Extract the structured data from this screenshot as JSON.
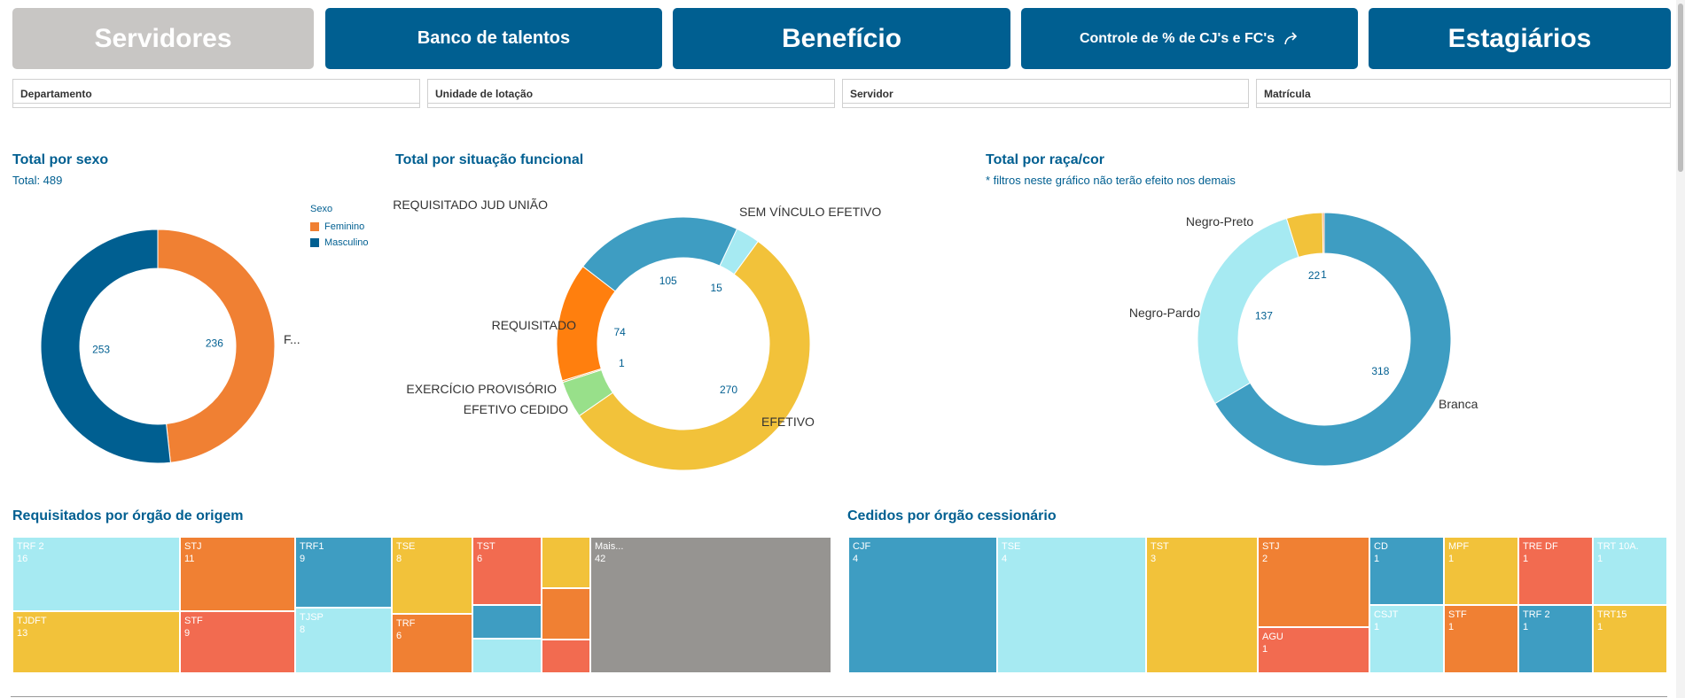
{
  "nav": [
    {
      "label": "Servidores",
      "state": "inactive"
    },
    {
      "label": "Banco de talentos",
      "state": "active"
    },
    {
      "label": "Benefício",
      "state": "active"
    },
    {
      "label": "Controle de % de CJ's e FC's",
      "state": "active",
      "icon": "share-arrow-icon"
    },
    {
      "label": "Estagiários",
      "state": "active"
    }
  ],
  "filters": [
    "Departamento",
    "Unidade de lotação",
    "Servidor",
    "Matrícula"
  ],
  "panels": {
    "sexo": {
      "title": "Total por sexo",
      "subtitle": "Total: 489",
      "legend_title": "Sexo",
      "truncated_label": "F..."
    },
    "situacao": {
      "title": "Total por situação funcional"
    },
    "raca": {
      "title": "Total por raça/cor",
      "subtitle": "* filtros neste gráfico não terão efeito nos demais"
    },
    "requisitados": {
      "title": "Requisitados por órgão de origem"
    },
    "cedidos": {
      "title": "Cedidos por órgão cessionário"
    }
  },
  "chart_data": [
    {
      "type": "pie",
      "donut": true,
      "title": "Total por sexo",
      "legend_placement": "top-right",
      "slices": [
        {
          "label": "Feminino",
          "value": 236,
          "color": "#f08033"
        },
        {
          "label": "Masculino",
          "value": 253,
          "color": "#005f91"
        }
      ]
    },
    {
      "type": "pie",
      "donut": true,
      "title": "Total por situação funcional",
      "slices": [
        {
          "label": "EFETIVO",
          "value": 270,
          "color": "#f2c23a"
        },
        {
          "label": "EFETIVO CEDIDO",
          "value": 23,
          "color": "#98e08a",
          "value_shown": false
        },
        {
          "label": "EXERCÍCIO PROVISÓRIO",
          "value": 1,
          "color": "#f4a03a"
        },
        {
          "label": "REQUISITADO",
          "value": 74,
          "color": "#ff7f0e"
        },
        {
          "label": "REQUISITADO JUD UNIÃO",
          "value": 105,
          "color": "#3e9dc2"
        },
        {
          "label": "SEM VÍNCULO EFETIVO",
          "value": 15,
          "color": "#a6eaf2"
        }
      ]
    },
    {
      "type": "pie",
      "donut": true,
      "title": "Total por raça/cor",
      "slices": [
        {
          "label": "Branca",
          "value": 318,
          "color": "#3e9dc2"
        },
        {
          "label": "Negro-Pardo",
          "value": 137,
          "color": "#a6eaf2"
        },
        {
          "label": "Negro-Preto",
          "value": 22,
          "color": "#f2c23a"
        },
        {
          "label": "",
          "value": 1,
          "color": "#f08033"
        }
      ]
    },
    {
      "type": "treemap",
      "title": "Requisitados por órgão de origem",
      "cells": [
        {
          "label": "TRF 2",
          "value": 16,
          "color": "#a6eaf2"
        },
        {
          "label": "TJDFT",
          "value": 13,
          "color": "#f2c23a"
        },
        {
          "label": "STJ",
          "value": 11,
          "color": "#f08033"
        },
        {
          "label": "STF",
          "value": 9,
          "color": "#f26b50"
        },
        {
          "label": "TRF1",
          "value": 9,
          "color": "#3e9dc2"
        },
        {
          "label": "TJSP",
          "value": 8,
          "color": "#a6eaf2"
        },
        {
          "label": "TSE",
          "value": 8,
          "color": "#f2c23a"
        },
        {
          "label": "TRF",
          "value": 6,
          "color": "#f08033"
        },
        {
          "label": "TST",
          "value": 6,
          "color": "#f26b50"
        },
        {
          "label": "",
          "value": 2,
          "color": "#3e9dc2"
        },
        {
          "label": "",
          "value": 2,
          "color": "#a6eaf2"
        },
        {
          "label": "",
          "value": 3,
          "color": "#f2c23a"
        },
        {
          "label": "",
          "value": 3,
          "color": "#f08033"
        },
        {
          "label": "",
          "value": 2,
          "color": "#f26b50"
        },
        {
          "label": "Mais...",
          "value": 42,
          "color": "#969491"
        }
      ]
    },
    {
      "type": "treemap",
      "title": "Cedidos por órgão cessionário",
      "cells": [
        {
          "label": "CJF",
          "value": 4,
          "color": "#3e9dc2"
        },
        {
          "label": "TSE",
          "value": 4,
          "color": "#a6eaf2"
        },
        {
          "label": "TST",
          "value": 3,
          "color": "#f2c23a"
        },
        {
          "label": "STJ",
          "value": 2,
          "color": "#f08033"
        },
        {
          "label": "AGU",
          "value": 1,
          "color": "#f26b50"
        },
        {
          "label": "CD",
          "value": 1,
          "color": "#3e9dc2"
        },
        {
          "label": "CSJT",
          "value": 1,
          "color": "#a6eaf2"
        },
        {
          "label": "MPF",
          "value": 1,
          "color": "#f2c23a"
        },
        {
          "label": "STF",
          "value": 1,
          "color": "#f08033"
        },
        {
          "label": "TRE DF",
          "value": 1,
          "color": "#f26b50"
        },
        {
          "label": "TRF 2",
          "value": 1,
          "color": "#3e9dc2"
        },
        {
          "label": "TRT 10A.",
          "value": 1,
          "color": "#a6eaf2"
        },
        {
          "label": "TRT15",
          "value": 1,
          "color": "#f2c23a"
        }
      ]
    }
  ]
}
